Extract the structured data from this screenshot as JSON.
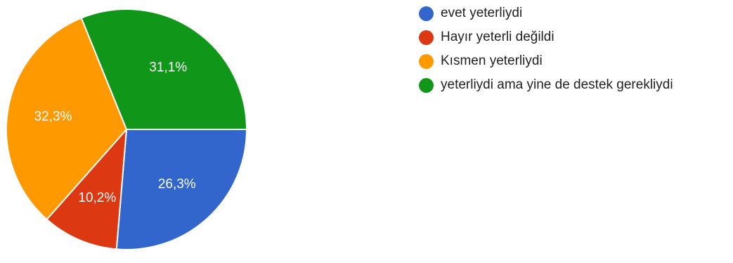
{
  "chart_data": {
    "type": "pie",
    "categories": [
      "evet yeterliydi",
      "Hayır yeterli değildi",
      "Kısmen yeterliydi",
      "yeterliydi ama yine de destek gerekliydi"
    ],
    "values": [
      26.3,
      10.2,
      32.3,
      31.1
    ],
    "value_labels": [
      "26,3%",
      "10,2%",
      "32,3%",
      "31,1%"
    ],
    "colors": [
      "#3366cc",
      "#dc3912",
      "#ff9900",
      "#109618"
    ],
    "legend_position": "right"
  }
}
